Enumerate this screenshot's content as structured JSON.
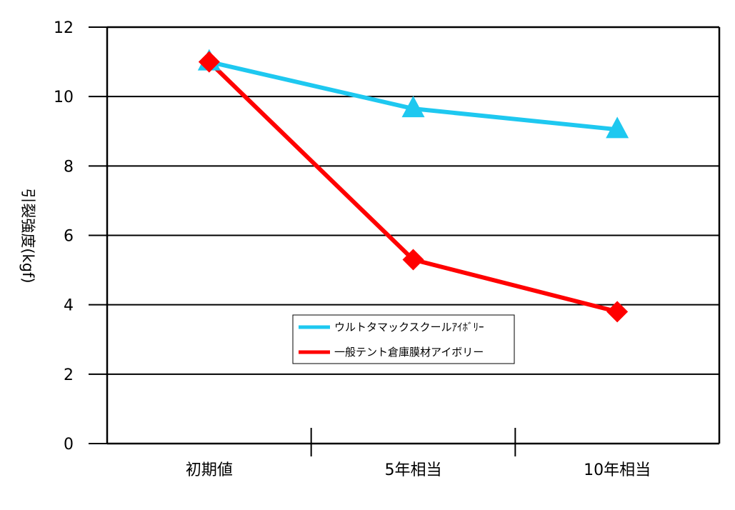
{
  "chart_data": {
    "type": "line",
    "categories": [
      "初期値",
      "5年相当",
      "10年相当"
    ],
    "series": [
      {
        "name": "ウルトタマックスクールｱｲﾎﾞﾘｰ",
        "values": [
          11.0,
          9.65,
          9.05
        ],
        "color": "#1ec8f0",
        "marker": "triangle"
      },
      {
        "name": "一般テント倉庫膜材アイボリー",
        "values": [
          11.0,
          5.3,
          3.8
        ],
        "color": "#ff0000",
        "marker": "diamond"
      }
    ],
    "xlabel": "",
    "ylabel": "引裂強度(kgf)",
    "ylim": [
      0,
      12
    ],
    "yticks": [
      "0",
      "2",
      "4",
      "6",
      "8",
      "10",
      "12"
    ],
    "grid": true,
    "legend_position": "inside-bottom-center"
  }
}
